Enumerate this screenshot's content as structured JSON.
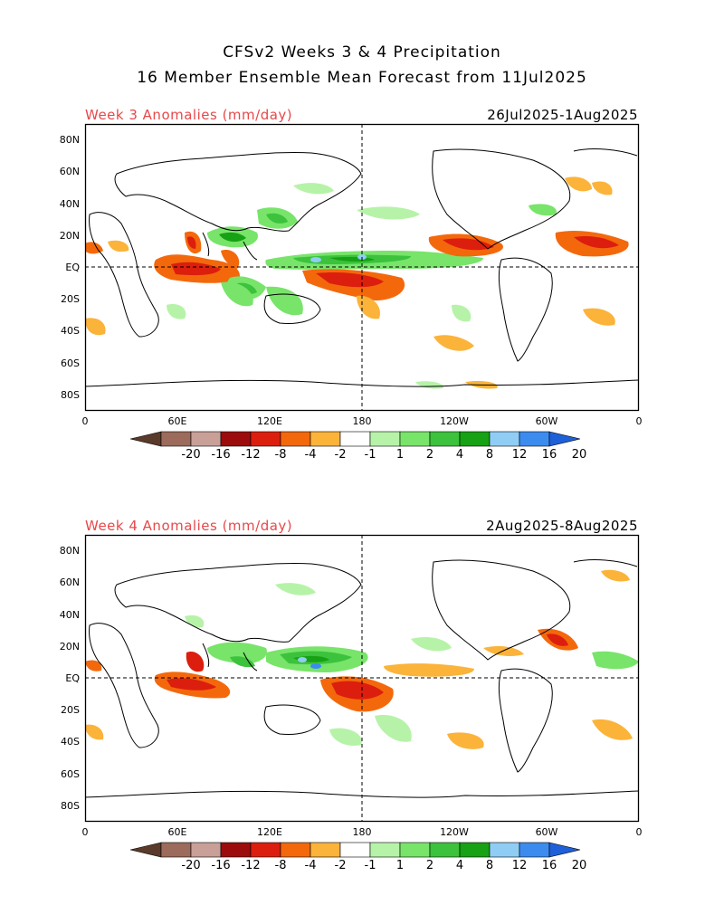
{
  "header": {
    "title_line1": "CFSv2 Weeks 3 & 4 Precipitation",
    "title_line2": "16 Member Ensemble Mean Forecast from 11Jul2025"
  },
  "panels": [
    {
      "title": "Week 3 Anomalies (mm/day)",
      "dates": "26Jul2025-1Aug2025"
    },
    {
      "title": "Week 4 Anomalies (mm/day)",
      "dates": "2Aug2025-8Aug2025"
    }
  ],
  "axes": {
    "lat_labels": [
      "80N",
      "60N",
      "40N",
      "20N",
      "EQ",
      "20S",
      "40S",
      "60S",
      "80S"
    ],
    "lon_labels": [
      "0",
      "60E",
      "120E",
      "180",
      "120W",
      "60W",
      "0"
    ]
  },
  "colorbar": {
    "labels": [
      "-20",
      "-16",
      "-12",
      "-8",
      "-4",
      "-2",
      "-1",
      "1",
      "2",
      "4",
      "8",
      "12",
      "16",
      "20"
    ],
    "colors": [
      "#5a3a2a",
      "#9c6b5c",
      "#c8a098",
      "#9c0c0c",
      "#dc1e0e",
      "#f4680c",
      "#fbb33a",
      "#ffffff",
      "#b6f3a8",
      "#78e46a",
      "#3cc23c",
      "#17a114",
      "#8fcdf5",
      "#3c8cf0",
      "#1e60d8"
    ]
  },
  "legend_colors": {
    "dry_heavy": "#9c0c0c",
    "dry": "#dc1e0e",
    "dry_mod": "#f4680c",
    "dry_light": "#fbb33a",
    "wet_light": "#b6f3a8",
    "wet": "#78e46a",
    "wet_mod": "#3cc23c",
    "wet_heavy": "#17a114",
    "wet_extra": "#8fcdf5",
    "wet_max": "#3c8cf0"
  }
}
